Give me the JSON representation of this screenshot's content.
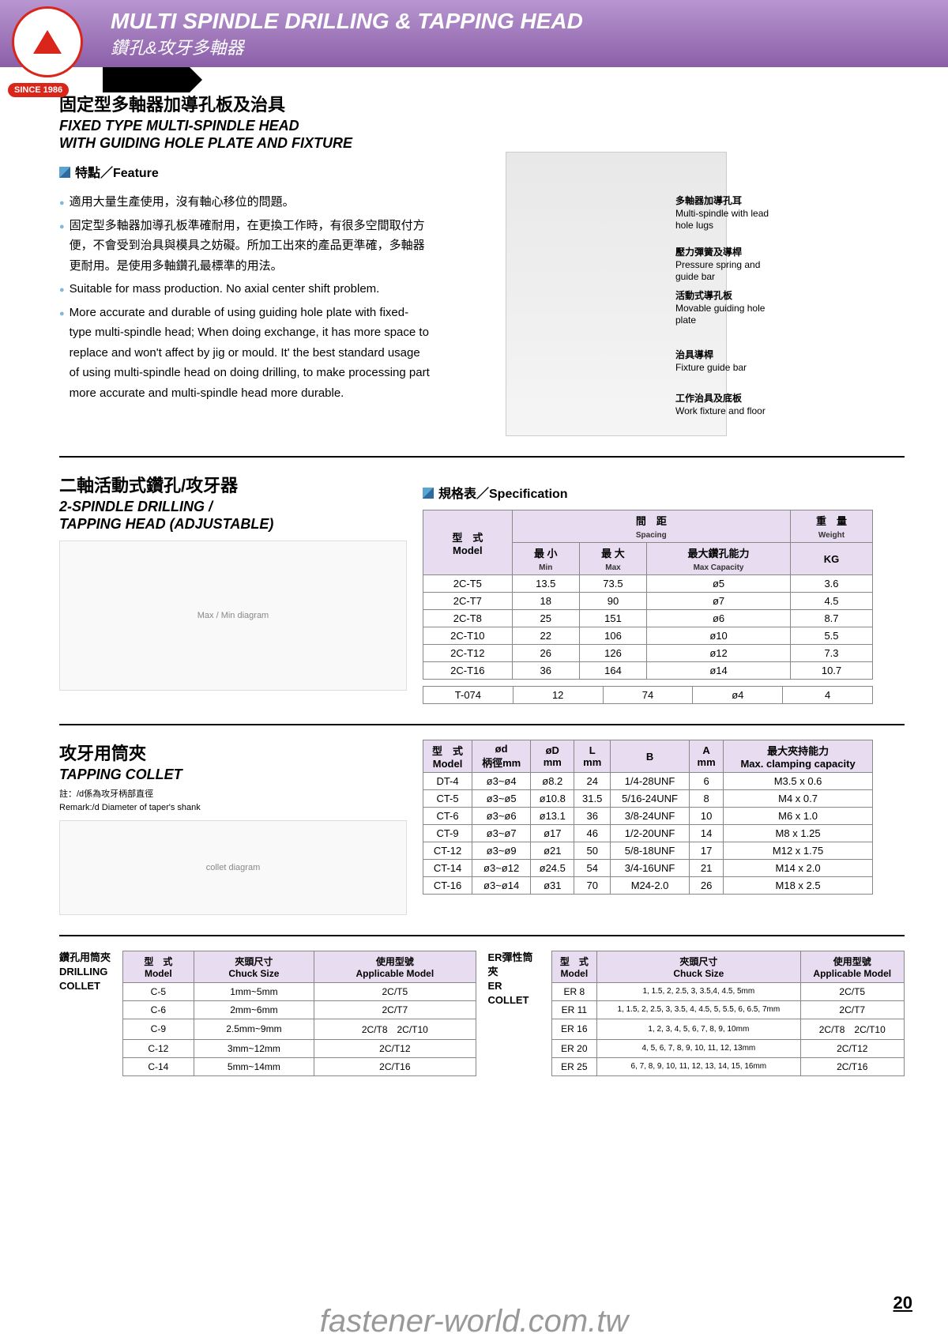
{
  "watermark": "fastener-world.com.tw",
  "header": {
    "title_en": "MULTI SPINDLE DRILLING & TAPPING HEAD",
    "title_zh": "鑽孔&攻牙多軸器",
    "since": "SINCE 1986"
  },
  "sec1": {
    "title_zh": "固定型多軸器加導孔板及治具",
    "title_en1": "FIXED TYPE MULTI-SPINDLE HEAD",
    "title_en2": "WITH GUIDING HOLE PLATE AND FIXTURE",
    "feature_hdr": "特點／Feature",
    "bullets": [
      "適用大量生產使用，沒有軸心移位的問題。",
      "固定型多軸器加導孔板準確耐用，在更換工作時，有很多空間取付方便，不會受到治具與模具之妨礙。所加工出來的產品更準確，多軸器更耐用。是使用多軸鑽孔最標準的用法。",
      "Suitable for mass production. No axial center shift problem.",
      "More accurate and durable of using guiding hole plate with fixed-type multi-spindle head; When doing exchange, it has more space to replace and won't affect by jig or mould. It' the best standard usage of using multi-spindle head on doing drilling, to make processing part more accurate and multi-spindle head more durable."
    ],
    "labels": [
      {
        "zh": "多軸器加導孔耳",
        "en": "Multi-spindle with lead hole lugs",
        "t": 55,
        "l": 290
      },
      {
        "zh": "壓力彈簧及導桿",
        "en": "Pressure spring and guide bar",
        "t": 120,
        "l": 290
      },
      {
        "zh": "活動式導孔板",
        "en": "Movable guiding hole plate",
        "t": 175,
        "l": 290
      },
      {
        "zh": "治具導桿",
        "en": "Fixture guide bar",
        "t": 250,
        "l": 290
      },
      {
        "zh": "工作治具及底板",
        "en": "Work fixture and floor",
        "t": 305,
        "l": 290
      }
    ]
  },
  "sec2": {
    "title_zh": "二軸活動式鑽孔/攻牙器",
    "title_en1": "2-SPINDLE DRILLING /",
    "title_en2": "TAPPING HEAD (ADJUSTABLE)",
    "spec_hdr": "規格表／Specification",
    "cols": {
      "model_zh": "型　式",
      "model_en": "Model",
      "spacing_zh": "間　距",
      "spacing_en": "Spacing",
      "weight_zh": "重　量",
      "weight_en": "Weight",
      "min_zh": "最 小",
      "min_en": "Min",
      "max_zh": "最 大",
      "max_en": "Max",
      "cap_zh": "最大鑽孔能力",
      "cap_en": "Max Capacity",
      "kg": "KG"
    },
    "rows": [
      [
        "2C-T5",
        "13.5",
        "73.5",
        "ø5",
        "3.6"
      ],
      [
        "2C-T7",
        "18",
        "90",
        "ø7",
        "4.5"
      ],
      [
        "2C-T8",
        "25",
        "151",
        "ø6",
        "8.7"
      ],
      [
        "2C-T10",
        "22",
        "106",
        "ø10",
        "5.5"
      ],
      [
        "2C-T12",
        "26",
        "126",
        "ø12",
        "7.3"
      ],
      [
        "2C-T16",
        "36",
        "164",
        "ø14",
        "10.7"
      ]
    ],
    "row_extra": [
      "T-074",
      "12",
      "74",
      "ø4",
      "4"
    ]
  },
  "sec3": {
    "title_zh": "攻牙用筒夾",
    "title_en": "TAPPING COLLET",
    "remark_zh": "註：/d係為攻牙柄部直徑",
    "remark_en": "Remark:/d Diameter of taper's shank",
    "cols": [
      "型　式\nModel",
      "ød\n柄徑mm",
      "øD\nmm",
      "L\nmm",
      "B",
      "A\nmm",
      "最大夾持能力\nMax. clamping capacity"
    ],
    "rows": [
      [
        "DT-4",
        "ø3~ø4",
        "ø8.2",
        "24",
        "1/4-28UNF",
        "6",
        "M3.5 x 0.6"
      ],
      [
        "CT-5",
        "ø3~ø5",
        "ø10.8",
        "31.5",
        "5/16-24UNF",
        "8",
        "M4 x 0.7"
      ],
      [
        "CT-6",
        "ø3~ø6",
        "ø13.1",
        "36",
        "3/8-24UNF",
        "10",
        "M6 x 1.0"
      ],
      [
        "CT-9",
        "ø3~ø7",
        "ø17",
        "46",
        "1/2-20UNF",
        "14",
        "M8 x 1.25"
      ],
      [
        "CT-12",
        "ø3~ø9",
        "ø21",
        "50",
        "5/8-18UNF",
        "17",
        "M12 x 1.75"
      ],
      [
        "CT-14",
        "ø3~ø12",
        "ø24.5",
        "54",
        "3/4-16UNF",
        "21",
        "M14 x 2.0"
      ],
      [
        "CT-16",
        "ø3~ø14",
        "ø31",
        "70",
        "M24-2.0",
        "26",
        "M18 x 2.5"
      ]
    ]
  },
  "drill_collet": {
    "label_zh": "鑽孔用筒夾",
    "label_en": "DRILLING COLLET",
    "cols": [
      "型　式\nModel",
      "夾頭尺寸\nChuck Size",
      "使用型號\nApplicable Model"
    ],
    "rows": [
      [
        "C-5",
        "1mm~5mm",
        "2C/T5"
      ],
      [
        "C-6",
        "2mm~6mm",
        "2C/T7"
      ],
      [
        "C-9",
        "2.5mm~9mm",
        "2C/T8　2C/T10"
      ],
      [
        "C-12",
        "3mm~12mm",
        "2C/T12"
      ],
      [
        "C-14",
        "5mm~14mm",
        "2C/T16"
      ]
    ]
  },
  "er_collet": {
    "label_zh": "ER彈性筒夾",
    "label_en": "ER COLLET",
    "cols": [
      "型　式\nModel",
      "夾頭尺寸\nChuck Size",
      "使用型號\nApplicable Model"
    ],
    "rows": [
      [
        "ER 8",
        "1, 1.5, 2, 2.5, 3, 3.5,4, 4.5, 5mm",
        "2C/T5"
      ],
      [
        "ER 11",
        "1, 1.5, 2, 2.5, 3, 3.5, 4, 4.5, 5, 5.5, 6, 6.5, 7mm",
        "2C/T7"
      ],
      [
        "ER 16",
        "1, 2, 3, 4, 5, 6, 7, 8, 9, 10mm",
        "2C/T8　2C/T10"
      ],
      [
        "ER 20",
        "4, 5, 6, 7, 8, 9, 10, 11, 12, 13mm",
        "2C/T12"
      ],
      [
        "ER 25",
        "6, 7, 8, 9, 10, 11, 12, 13, 14, 15, 16mm",
        "2C/T16"
      ]
    ]
  },
  "page_num": "20"
}
